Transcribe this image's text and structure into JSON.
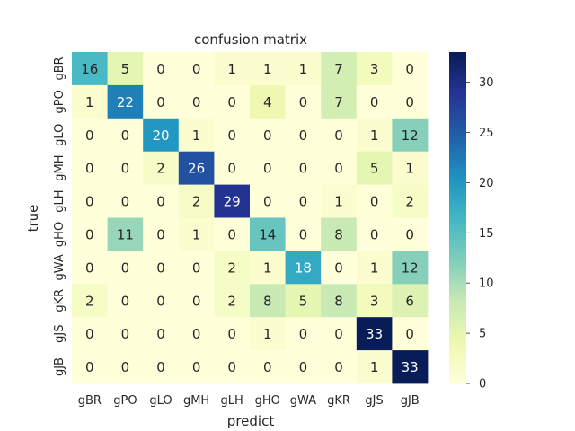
{
  "chart_data": {
    "type": "heatmap",
    "title": "confusion matrix",
    "xlabel": "predict",
    "ylabel": "true",
    "x_categories": [
      "gBR",
      "gPO",
      "gLO",
      "gMH",
      "gLH",
      "gHO",
      "gWA",
      "gKR",
      "gJS",
      "gJB"
    ],
    "y_categories": [
      "gBR",
      "gPO",
      "gLO",
      "gMH",
      "gLH",
      "gHO",
      "gWA",
      "gKR",
      "gJS",
      "gJB"
    ],
    "values": [
      [
        16,
        5,
        0,
        0,
        1,
        1,
        1,
        7,
        3,
        0
      ],
      [
        1,
        22,
        0,
        0,
        0,
        4,
        0,
        7,
        0,
        0
      ],
      [
        0,
        0,
        20,
        1,
        0,
        0,
        0,
        0,
        1,
        12
      ],
      [
        0,
        0,
        2,
        26,
        0,
        0,
        0,
        0,
        5,
        1
      ],
      [
        0,
        0,
        0,
        2,
        29,
        0,
        0,
        1,
        0,
        2
      ],
      [
        0,
        11,
        0,
        1,
        0,
        14,
        0,
        8,
        0,
        0
      ],
      [
        0,
        0,
        0,
        0,
        2,
        1,
        18,
        0,
        1,
        12
      ],
      [
        2,
        0,
        0,
        0,
        2,
        8,
        5,
        8,
        3,
        6
      ],
      [
        0,
        0,
        0,
        0,
        0,
        1,
        0,
        0,
        33,
        0
      ],
      [
        0,
        0,
        0,
        0,
        0,
        0,
        0,
        0,
        1,
        33
      ]
    ],
    "colormap": "YlGnBu",
    "vmin": 0,
    "vmax": 33,
    "colorbar_ticks": [
      0,
      5,
      10,
      15,
      20,
      25,
      30
    ],
    "annotations": true
  }
}
